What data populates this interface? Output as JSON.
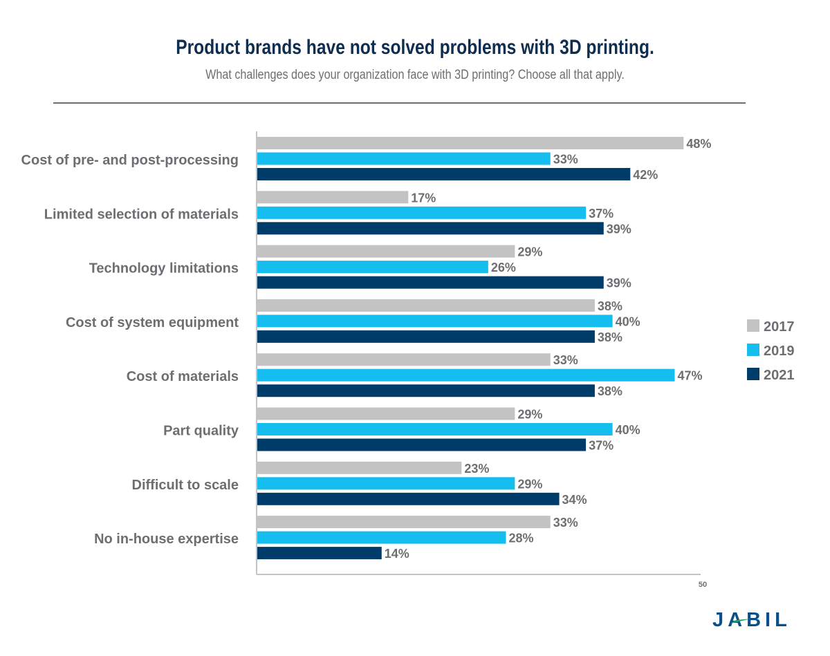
{
  "chart_data": {
    "type": "bar",
    "orientation": "horizontal",
    "title": "Product brands have not solved problems with 3D printing.",
    "subtitle": "What challenges does your organization face with 3D printing? Choose all that apply.",
    "categories": [
      "Cost of pre- and post-processing",
      "Limited selection of materials",
      "Technology limitations",
      "Cost of system equipment",
      "Cost of materials",
      "Part quality",
      "Difficult to scale",
      "No in-house expertise"
    ],
    "series": [
      {
        "name": "2017",
        "color": "#c3c3c3",
        "values": [
          48,
          17,
          29,
          38,
          33,
          29,
          23,
          33
        ]
      },
      {
        "name": "2019",
        "color": "#16bdef",
        "values": [
          33,
          37,
          26,
          40,
          47,
          40,
          29,
          28
        ]
      },
      {
        "name": "2021",
        "color": "#003c69",
        "values": [
          42,
          39,
          39,
          38,
          38,
          37,
          34,
          14
        ]
      }
    ],
    "value_suffix": "%",
    "xlim": [
      0,
      50
    ],
    "x_ticks": [
      "50"
    ],
    "legend_position": "right",
    "grid": false
  },
  "logo": {
    "text": "JABIL",
    "color": "#0a4f8a",
    "accent": "#1fa45a"
  }
}
